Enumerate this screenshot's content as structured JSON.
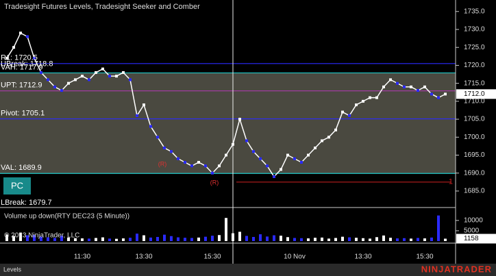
{
  "chart_data": {
    "type": "line",
    "title": "Tradesight Futures Levels, Tradesight Seeker and Comber",
    "categories": [
      null,
      null,
      null,
      null,
      null,
      null,
      null,
      null,
      null,
      null,
      null,
      "11:30",
      null,
      null,
      null,
      null,
      null,
      null,
      null,
      null,
      "13:30",
      null,
      null,
      null,
      null,
      null,
      null,
      null,
      null,
      null,
      "15:30",
      null,
      null,
      null,
      null,
      null,
      null,
      null,
      null,
      null,
      null,
      null,
      "10 Nov",
      null,
      null,
      null,
      null,
      null,
      null,
      null,
      null,
      null,
      "13:30",
      null,
      null,
      null,
      null,
      null,
      null,
      null,
      null,
      "15:30",
      null,
      null,
      null
    ],
    "series": [
      {
        "name": "RTY DEC23 (5 Minute)",
        "color": "#ffffff",
        "values": [
          1722,
          1725,
          1729,
          1728,
          1722,
          1718,
          1716,
          1714,
          1713,
          1715,
          1716,
          1717,
          1716,
          1718,
          1719,
          1717,
          1717,
          1718,
          1716,
          1706,
          1709,
          1703,
          1700,
          1697,
          1696,
          1694,
          1693,
          1692,
          1693,
          1692,
          1690,
          1692,
          1695,
          1698,
          1705,
          1699,
          1696,
          1694,
          1692,
          1689,
          1691,
          1695,
          1694,
          1693,
          1695,
          1697,
          1699,
          1700,
          1702,
          1707,
          1706,
          1709,
          1710,
          1711,
          1711,
          1714,
          1716,
          1715,
          1714,
          1714,
          1713,
          1714,
          1712,
          1711,
          1712
        ]
      }
    ],
    "ylim": [
      1680.6,
      1738.2
    ],
    "yticks": [
      {
        "value": 1685,
        "label": "1685.0"
      },
      {
        "value": 1690,
        "label": "1690.0"
      },
      {
        "value": 1695,
        "label": "1695.0"
      },
      {
        "value": 1700,
        "label": "1700.0"
      },
      {
        "value": 1705,
        "label": "1705.0"
      },
      {
        "value": 1710,
        "label": "1710.0"
      },
      {
        "value": 1715,
        "label": "1715.0"
      },
      {
        "value": 1720,
        "label": "1720.0"
      },
      {
        "value": 1725,
        "label": "1725.0"
      },
      {
        "value": 1730,
        "label": "1730.0"
      },
      {
        "value": 1735,
        "label": "1735.0"
      }
    ],
    "last_price": {
      "value": 1712,
      "label": "1712.0"
    },
    "levels": [
      {
        "label": "R1: 1720.5",
        "value": 1720.5,
        "color": "#2a2aff"
      },
      {
        "label": "UBreak: 1718.8",
        "value": 1718.8
      },
      {
        "label": "VAH: 1717.9",
        "value": 1717.9,
        "color": "#20c8c8"
      },
      {
        "label": "UPT: 1712.9",
        "value": 1712.9,
        "color": "#a03ca0"
      },
      {
        "label": "Pivot: 1705.1",
        "value": 1705.1,
        "color": "#2a2aff"
      },
      {
        "label": "VAL: 1689.9",
        "value": 1689.9,
        "color": "#20c8c8"
      },
      {
        "label": "LBreak: 1679.7",
        "value": 1679.7
      }
    ],
    "signal_line": {
      "label": "1",
      "value": 1687.5,
      "color": "#d02020"
    },
    "markers": [
      "(R)",
      "(R)"
    ],
    "badge": "PC",
    "volume": {
      "title": "Volume up down(RTY DEC23 (5 Minute))",
      "values": [
        3200,
        2500,
        4100,
        2800,
        3000,
        2200,
        1800,
        1500,
        2600,
        1700,
        1400,
        1300,
        1200,
        1500,
        1800,
        1200,
        1100,
        1300,
        1600,
        3600,
        2800,
        1700,
        2000,
        3100,
        2400,
        1800,
        1600,
        1500,
        1700,
        2100,
        2600,
        2900,
        11200,
        3800,
        4500,
        2500,
        2000,
        3300,
        2200,
        2800,
        2600,
        1900,
        1500,
        1400,
        1300,
        1600,
        1700,
        1200,
        1500,
        2100,
        1800,
        1600,
        1400,
        1200,
        1900,
        2700,
        1600,
        1300,
        1400,
        1200,
        1500,
        1300,
        1700,
        12400,
        1158
      ],
      "ylim": [
        0,
        15600
      ],
      "yticks": [
        5000,
        10000
      ],
      "last": 1158
    },
    "copyright": "© 2023 NinjaTrader, LLC",
    "tab": "Levels",
    "brand": "NINJATRADER"
  }
}
